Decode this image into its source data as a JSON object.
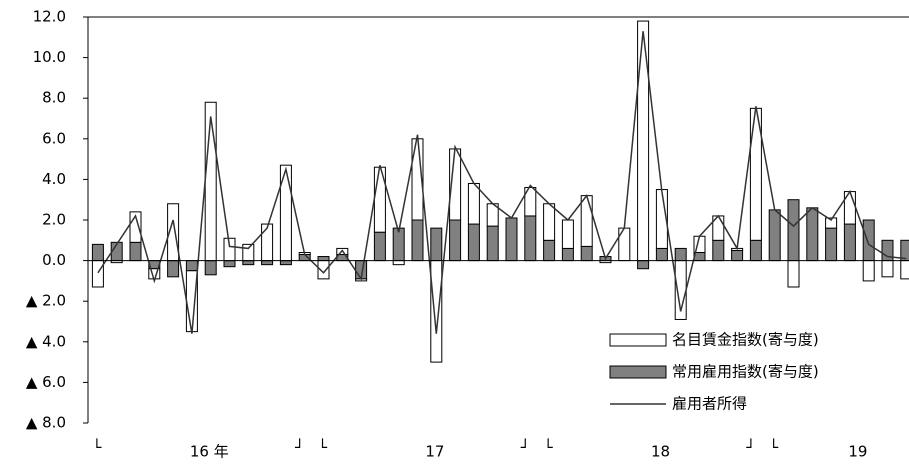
{
  "chart_data": {
    "type": "bar",
    "categories": [
      null,
      null,
      null,
      null,
      null,
      null,
      null,
      null,
      null,
      null,
      null,
      null,
      null,
      null,
      null,
      null,
      null,
      null,
      null,
      null,
      null,
      null,
      null,
      null,
      null,
      null,
      null,
      null,
      null,
      null,
      null,
      null,
      null,
      null,
      null,
      null,
      null,
      null,
      null,
      null,
      null,
      null,
      null,
      null
    ],
    "years": [
      "16 年",
      "17",
      "18",
      "19"
    ],
    "year_start": "└",
    "year_end": "┘",
    "series": [
      {
        "name": "名目賃金指数(寄与度)",
        "color": "#ffffff",
        "values": [
          -1.3,
          -0.1,
          1.5,
          -0.5,
          2.8,
          -3.0,
          7.8,
          1.1,
          0.8,
          1.8,
          4.7,
          0.1,
          -0.9,
          0.3,
          -0.1,
          3.2,
          -0.2,
          4.0,
          -5.0,
          3.5,
          2.0,
          1.1,
          0.0,
          1.4,
          1.8,
          1.4,
          2.5,
          -0.1,
          1.6,
          11.8,
          2.9,
          -2.9,
          0.8,
          1.2,
          0.1,
          6.5,
          0.0,
          -1.3,
          0.0,
          0.5,
          1.6,
          -1.0,
          -0.8,
          -0.9
        ]
      },
      {
        "name": "常用雇用指数(寄与度)",
        "color": "#808080",
        "values": [
          0.8,
          0.9,
          0.9,
          -0.4,
          -0.8,
          -0.5,
          -0.7,
          -0.3,
          -0.2,
          -0.2,
          -0.2,
          0.3,
          0.2,
          0.3,
          -0.9,
          1.4,
          1.6,
          2.0,
          1.6,
          2.0,
          1.8,
          1.7,
          2.1,
          2.2,
          1.0,
          0.6,
          0.7,
          0.2,
          0.0,
          -0.4,
          0.6,
          0.6,
          0.4,
          1.0,
          0.5,
          1.0,
          2.5,
          3.0,
          2.6,
          1.6,
          1.8,
          2.0,
          1.0,
          1.0
        ]
      },
      {
        "name": "雇用者所得",
        "color": "#333333",
        "type": "line",
        "values": [
          -0.6,
          0.8,
          2.2,
          -1.0,
          2.0,
          -3.6,
          7.1,
          0.7,
          0.6,
          1.6,
          4.5,
          0.3,
          -0.6,
          0.5,
          -0.9,
          4.7,
          1.4,
          6.2,
          -3.6,
          5.6,
          3.8,
          2.8,
          2.1,
          3.7,
          2.8,
          2.0,
          3.2,
          0.1,
          1.6,
          11.3,
          3.4,
          -2.5,
          1.2,
          2.2,
          0.6,
          7.6,
          2.5,
          1.7,
          2.6,
          2.0,
          3.4,
          0.8,
          0.2,
          0.1
        ]
      }
    ],
    "ylim": [
      -8,
      12
    ],
    "yticks": [
      {
        "value": 12,
        "label": "12.0"
      },
      {
        "value": 10,
        "label": "10.0"
      },
      {
        "value": 8,
        "label": "8.0"
      },
      {
        "value": 6,
        "label": "6.0"
      },
      {
        "value": 4,
        "label": "4.0"
      },
      {
        "value": 2,
        "label": "2.0"
      },
      {
        "value": 0,
        "label": "0.0"
      },
      {
        "value": -2,
        "label": "▲ 2.0"
      },
      {
        "value": -4,
        "label": "▲ 4.0"
      },
      {
        "value": -6,
        "label": "▲ 6.0"
      },
      {
        "value": -8,
        "label": "▲ 8.0"
      }
    ],
    "legend": "bottom-right"
  }
}
